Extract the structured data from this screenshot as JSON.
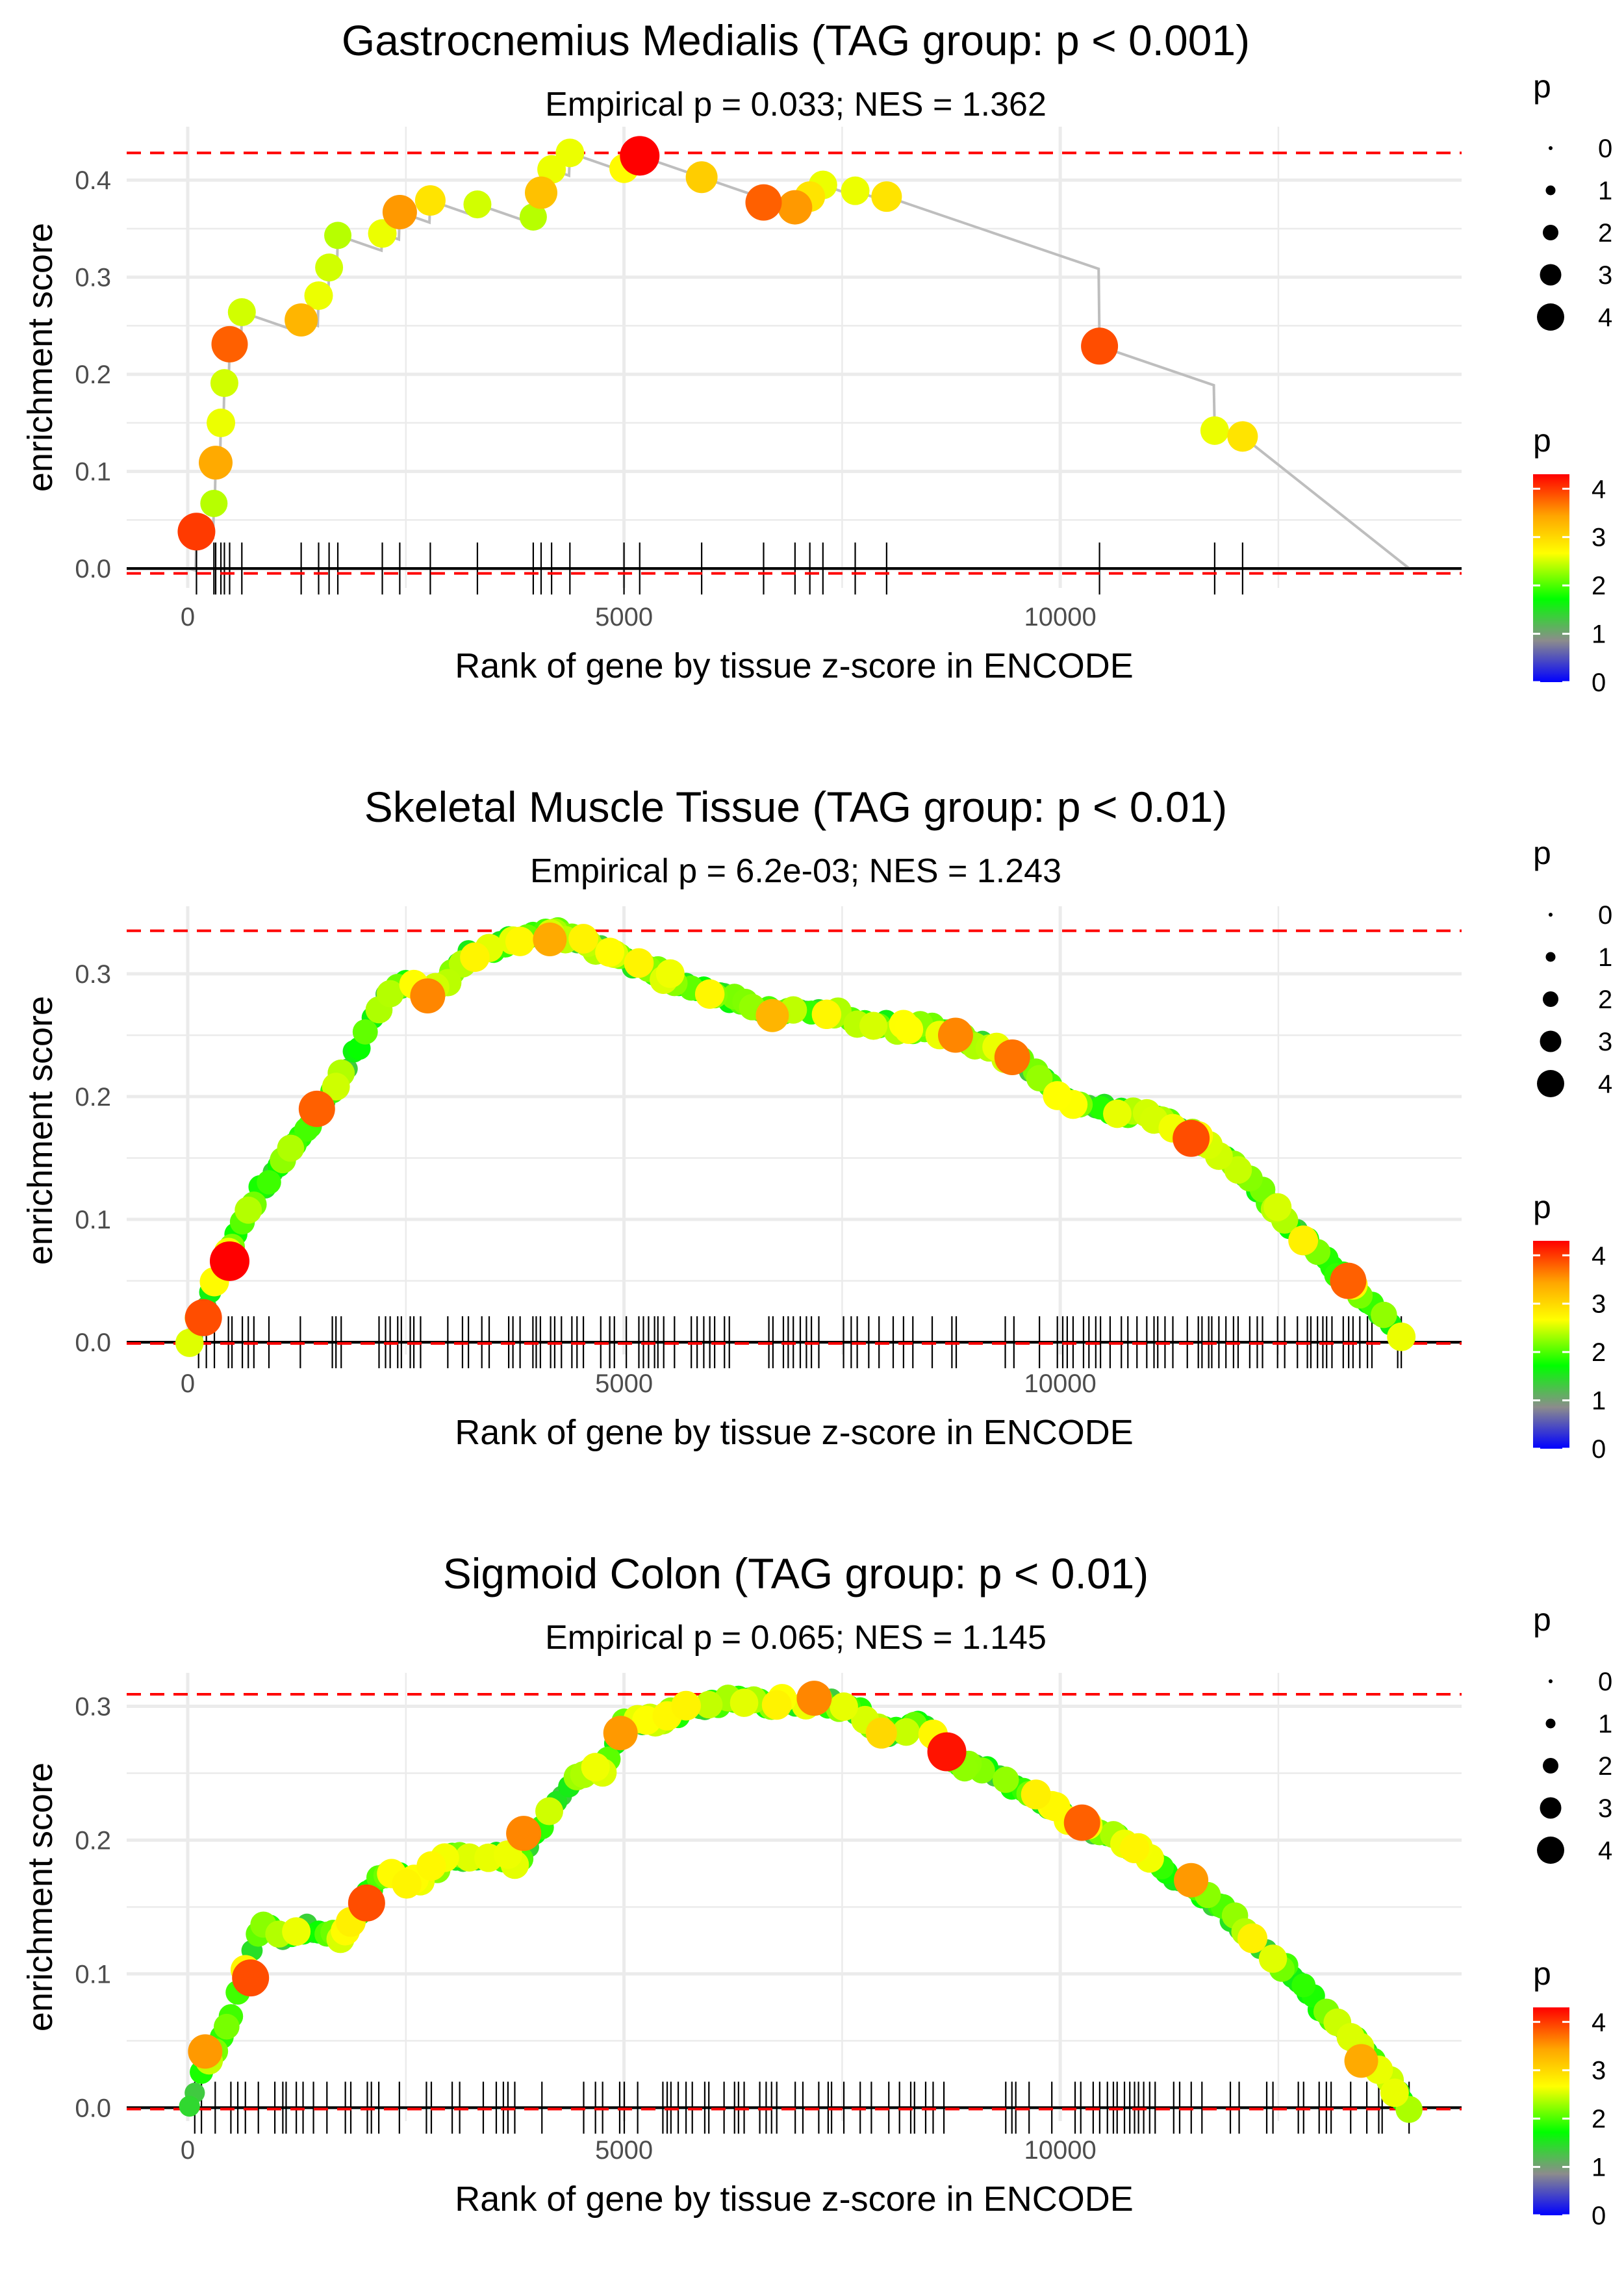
{
  "colors": {
    "gridline": "#ebebeb",
    "background": "#ffffff",
    "line": "#bebebe",
    "threshold": "#ff0000",
    "zero_line": "#000000",
    "gene_tick": "#000000",
    "gradient": [
      "#0000ff",
      "#8c8c8c",
      "#00ff00",
      "#ffff00",
      "#ffa500",
      "#ff0000"
    ]
  },
  "chart_data": [
    {
      "type": "scatter",
      "title": "Gastrocnemius Medialis (TAG group: p < 0.001)",
      "subtitle": "Empirical p = 0.033; NES = 1.362",
      "xlabel": "Rank of gene by tissue z-score in ENCODE",
      "ylabel": "enrichment score",
      "xlim": [
        -700,
        14600
      ],
      "ylim": [
        -0.02,
        0.455
      ],
      "xticks": [
        0,
        5000,
        10000
      ],
      "xtick_labels": [
        "0",
        "5000",
        "10000"
      ],
      "yticks": [
        0.0,
        0.1,
        0.2,
        0.3,
        0.4
      ],
      "ytick_labels": [
        "0.0",
        "0.1",
        "0.2",
        "0.3",
        "0.4"
      ],
      "max_es": 0.428,
      "min_es": -0.005,
      "end_rank": 14000,
      "mode": "sparse",
      "points": [
        [
          100,
          0.038,
          4.0
        ],
        [
          300,
          0.067,
          2.4
        ],
        [
          320,
          0.109,
          3.4
        ],
        [
          380,
          0.15,
          2.6
        ],
        [
          420,
          0.191,
          2.5
        ],
        [
          480,
          0.231,
          3.8
        ],
        [
          620,
          0.264,
          2.5
        ],
        [
          1300,
          0.256,
          3.3
        ],
        [
          1500,
          0.281,
          2.6
        ],
        [
          1620,
          0.31,
          2.5
        ],
        [
          1720,
          0.343,
          2.4
        ],
        [
          2230,
          0.345,
          2.6
        ],
        [
          2430,
          0.367,
          3.5
        ],
        [
          2780,
          0.379,
          2.9
        ],
        [
          3320,
          0.375,
          2.5
        ],
        [
          3960,
          0.362,
          2.4
        ],
        [
          4050,
          0.387,
          3.2
        ],
        [
          4170,
          0.411,
          2.6
        ],
        [
          4380,
          0.428,
          2.6
        ],
        [
          5000,
          0.412,
          2.7
        ],
        [
          5180,
          0.425,
          4.3
        ],
        [
          5890,
          0.403,
          3.1
        ],
        [
          6600,
          0.377,
          3.8
        ],
        [
          6960,
          0.372,
          3.5
        ],
        [
          7130,
          0.383,
          2.9
        ],
        [
          7280,
          0.395,
          2.6
        ],
        [
          7650,
          0.389,
          2.6
        ],
        [
          8010,
          0.383,
          2.9
        ],
        [
          10450,
          0.229,
          3.9
        ],
        [
          11770,
          0.142,
          2.6
        ],
        [
          12090,
          0.136,
          2.9
        ]
      ]
    },
    {
      "type": "scatter",
      "title": "Skeletal Muscle Tissue (TAG group: p < 0.01)",
      "subtitle": "Empirical p = 6.2e-03; NES = 1.243",
      "xlabel": "Rank of gene by tissue z-score in ENCODE",
      "ylabel": "enrichment score",
      "xlim": [
        -700,
        14600
      ],
      "ylim": [
        -0.01,
        0.355
      ],
      "xticks": [
        0,
        5000,
        10000
      ],
      "xtick_labels": [
        "0",
        "5000",
        "10000"
      ],
      "yticks": [
        0.0,
        0.1,
        0.2,
        0.3
      ],
      "ytick_labels": [
        "0.0",
        "0.1",
        "0.2",
        "0.3"
      ],
      "max_es": 0.335,
      "min_es": -0.001,
      "end_rank": 13950,
      "mode": "dense",
      "curve": [
        [
          0,
          0.0
        ],
        [
          150,
          0.02
        ],
        [
          300,
          0.045
        ],
        [
          500,
          0.075
        ],
        [
          700,
          0.11
        ],
        [
          1000,
          0.14
        ],
        [
          1300,
          0.17
        ],
        [
          1700,
          0.21
        ],
        [
          2000,
          0.245
        ],
        [
          2300,
          0.285
        ],
        [
          2500,
          0.292
        ],
        [
          2700,
          0.282
        ],
        [
          2950,
          0.29
        ],
        [
          3200,
          0.315
        ],
        [
          3500,
          0.322
        ],
        [
          3800,
          0.33
        ],
        [
          4200,
          0.334
        ],
        [
          4600,
          0.325
        ],
        [
          5000,
          0.31
        ],
        [
          5400,
          0.3
        ],
        [
          6000,
          0.285
        ],
        [
          6600,
          0.268
        ],
        [
          7000,
          0.275
        ],
        [
          7500,
          0.265
        ],
        [
          8000,
          0.258
        ],
        [
          8500,
          0.255
        ],
        [
          9000,
          0.245
        ],
        [
          9500,
          0.23
        ],
        [
          10000,
          0.2
        ],
        [
          10500,
          0.19
        ],
        [
          11000,
          0.185
        ],
        [
          11600,
          0.165
        ],
        [
          12200,
          0.13
        ],
        [
          12700,
          0.09
        ],
        [
          13200,
          0.055
        ],
        [
          13600,
          0.03
        ],
        [
          13950,
          0.0
        ]
      ],
      "highlights": [
        [
          480,
          0.066,
          4.3
        ],
        [
          180,
          0.02,
          3.9
        ],
        [
          1480,
          0.19,
          3.8
        ],
        [
          2750,
          0.282,
          3.6
        ],
        [
          4150,
          0.328,
          3.4
        ],
        [
          6700,
          0.266,
          3.3
        ],
        [
          8800,
          0.25,
          3.6
        ],
        [
          9450,
          0.232,
          3.7
        ],
        [
          11500,
          0.166,
          3.9
        ],
        [
          13300,
          0.05,
          3.8
        ]
      ],
      "gene_ranks": []
    },
    {
      "type": "scatter",
      "title": "Sigmoid Colon (TAG group: p < 0.01)",
      "subtitle": "Empirical p = 0.065; NES = 1.145",
      "xlabel": "Rank of gene by tissue z-score in ENCODE",
      "ylabel": "enrichment score",
      "xlim": [
        -700,
        14600
      ],
      "ylim": [
        -0.01,
        0.325
      ],
      "xticks": [
        0,
        5000,
        10000
      ],
      "xtick_labels": [
        "0",
        "5000",
        "10000"
      ],
      "yticks": [
        0.0,
        0.1,
        0.2,
        0.3
      ],
      "ytick_labels": [
        "0.0",
        "0.1",
        "0.2",
        "0.3"
      ],
      "max_es": 0.309,
      "min_es": -0.001,
      "end_rank": 14000,
      "mode": "dense",
      "curve": [
        [
          0,
          0.0
        ],
        [
          200,
          0.03
        ],
        [
          400,
          0.055
        ],
        [
          650,
          0.1
        ],
        [
          850,
          0.14
        ],
        [
          1100,
          0.125
        ],
        [
          1400,
          0.135
        ],
        [
          1750,
          0.125
        ],
        [
          2000,
          0.15
        ],
        [
          2200,
          0.175
        ],
        [
          2600,
          0.17
        ],
        [
          3000,
          0.185
        ],
        [
          3400,
          0.188
        ],
        [
          3800,
          0.185
        ],
        [
          4100,
          0.215
        ],
        [
          4400,
          0.245
        ],
        [
          4800,
          0.255
        ],
        [
          5000,
          0.285
        ],
        [
          5400,
          0.29
        ],
        [
          5800,
          0.3
        ],
        [
          6200,
          0.303
        ],
        [
          6800,
          0.303
        ],
        [
          7200,
          0.305
        ],
        [
          7600,
          0.3
        ],
        [
          8000,
          0.28
        ],
        [
          8400,
          0.285
        ],
        [
          8800,
          0.26
        ],
        [
          9200,
          0.25
        ],
        [
          9800,
          0.23
        ],
        [
          10300,
          0.21
        ],
        [
          10800,
          0.195
        ],
        [
          11500,
          0.165
        ],
        [
          12000,
          0.14
        ],
        [
          12500,
          0.11
        ],
        [
          13000,
          0.075
        ],
        [
          13500,
          0.04
        ],
        [
          14000,
          0.0
        ]
      ],
      "highlights": [
        [
          720,
          0.097,
          3.9
        ],
        [
          2050,
          0.153,
          3.9
        ],
        [
          3850,
          0.205,
          3.6
        ],
        [
          4960,
          0.28,
          3.5
        ],
        [
          7180,
          0.306,
          3.6
        ],
        [
          7950,
          0.28,
          3.0
        ],
        [
          8700,
          0.266,
          4.2
        ],
        [
          10250,
          0.213,
          3.8
        ],
        [
          11500,
          0.17,
          3.5
        ],
        [
          13450,
          0.035,
          3.4
        ],
        [
          200,
          0.042,
          3.5
        ]
      ],
      "gene_ranks": []
    }
  ],
  "legend": {
    "size_title": "p",
    "size_labels": [
      "0",
      "1",
      "2",
      "3",
      "4"
    ],
    "color_title": "p",
    "color_labels": [
      "4",
      "3",
      "2",
      "1",
      "0"
    ]
  }
}
